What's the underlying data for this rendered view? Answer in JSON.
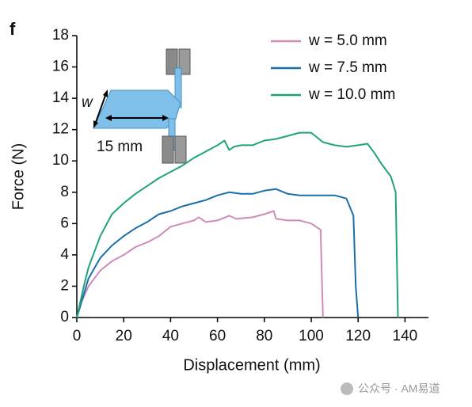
{
  "chart_data": {
    "type": "line",
    "panel_label": "f",
    "x_label": "Displacement (mm)",
    "y_label": "Force (N)",
    "xlim": [
      0,
      150
    ],
    "ylim": [
      0,
      18
    ],
    "xticks": [
      0,
      20,
      40,
      60,
      80,
      100,
      120,
      140
    ],
    "yticks": [
      0,
      2,
      4,
      6,
      8,
      10,
      12,
      14,
      16,
      18
    ],
    "grid": false,
    "legend": "upper right",
    "inset_labels": [
      "w",
      "15 mm"
    ],
    "watermark": "公众号 · AM易道",
    "series": [
      {
        "name": "w = 5.0 mm",
        "color": "#d08bb8",
        "x": [
          0,
          2,
          5,
          10,
          15,
          20,
          25,
          30,
          35,
          40,
          45,
          50,
          52,
          55,
          60,
          65,
          68,
          75,
          80,
          84,
          85,
          90,
          95,
          100,
          104,
          105
        ],
        "values": [
          0,
          1,
          2,
          3,
          3.6,
          4,
          4.5,
          4.8,
          5.2,
          5.8,
          6,
          6.2,
          6.4,
          6.1,
          6.2,
          6.5,
          6.3,
          6.4,
          6.6,
          6.8,
          6.3,
          6.2,
          6.2,
          6,
          5.6,
          0
        ]
      },
      {
        "name": "w = 7.5 mm",
        "color": "#1a6fa8",
        "x": [
          0,
          3,
          5,
          10,
          15,
          20,
          25,
          30,
          35,
          40,
          45,
          50,
          55,
          60,
          65,
          70,
          75,
          80,
          85,
          90,
          95,
          100,
          105,
          110,
          115,
          118,
          119,
          120
        ],
        "values": [
          0,
          1.5,
          2.5,
          3.8,
          4.6,
          5.2,
          5.7,
          6.1,
          6.6,
          6.8,
          7.1,
          7.3,
          7.5,
          7.8,
          8,
          7.9,
          7.9,
          8.1,
          8.2,
          7.9,
          7.8,
          7.8,
          7.8,
          7.8,
          7.6,
          6.5,
          2,
          0
        ]
      },
      {
        "name": "w = 10.0 mm",
        "color": "#1fa37a",
        "x": [
          0,
          3,
          5,
          10,
          15,
          20,
          25,
          30,
          35,
          40,
          45,
          50,
          55,
          60,
          63,
          65,
          67,
          70,
          75,
          80,
          85,
          90,
          95,
          100,
          105,
          110,
          115,
          120,
          124,
          127,
          130,
          134,
          136,
          137
        ],
        "values": [
          0,
          2,
          3.2,
          5.2,
          6.6,
          7.3,
          7.9,
          8.4,
          8.9,
          9.3,
          9.7,
          10.2,
          10.6,
          11,
          11.3,
          10.7,
          10.9,
          11,
          11,
          11.3,
          11.4,
          11.6,
          11.8,
          11.8,
          11.2,
          11,
          10.9,
          11,
          11.1,
          10.5,
          9.8,
          9,
          8,
          0
        ]
      }
    ]
  }
}
